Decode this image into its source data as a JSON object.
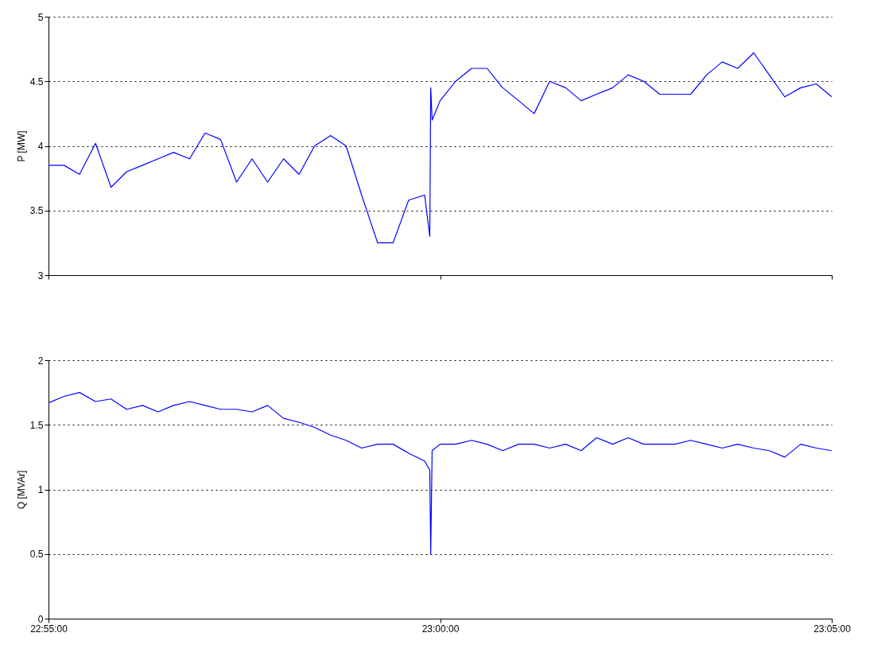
{
  "chart_data": [
    {
      "type": "line",
      "ylabel": "P [MW]",
      "xlim": [
        22.9167,
        23.0833
      ],
      "xticks": [
        {
          "value": 22.9167,
          "label": null
        },
        {
          "value": 23.0,
          "label": null
        },
        {
          "value": 23.0833,
          "label": null
        }
      ],
      "ylim": [
        3,
        5
      ],
      "yticks": [
        3,
        3.5,
        4,
        4.5,
        5
      ],
      "grid": "y",
      "tick_labels": "y",
      "x": [
        22.9167,
        22.92,
        22.9233,
        22.9267,
        22.93,
        22.9333,
        22.9367,
        22.94,
        22.9433,
        22.9467,
        22.95,
        22.9533,
        22.9567,
        22.96,
        22.9633,
        22.9667,
        22.97,
        22.9733,
        22.9767,
        22.98,
        22.9833,
        22.9867,
        22.99,
        22.9933,
        22.9967,
        22.9978,
        22.998,
        22.9983,
        23.0,
        23.0033,
        23.0067,
        23.01,
        23.0133,
        23.0167,
        23.02,
        23.0233,
        23.0267,
        23.03,
        23.0333,
        23.0367,
        23.04,
        23.0433,
        23.0467,
        23.05,
        23.0533,
        23.0567,
        23.06,
        23.0633,
        23.0667,
        23.07,
        23.0733,
        23.0767,
        23.08,
        23.0833
      ],
      "series": [
        {
          "color": "#0000ff",
          "values": [
            3.85,
            3.85,
            3.78,
            4.02,
            3.68,
            3.8,
            3.85,
            3.9,
            3.95,
            3.9,
            4.1,
            4.05,
            3.72,
            3.9,
            3.72,
            3.9,
            3.78,
            4.0,
            4.08,
            4.0,
            3.62,
            3.25,
            3.25,
            3.58,
            3.62,
            3.3,
            4.45,
            4.2,
            4.35,
            4.5,
            4.6,
            4.6,
            4.45,
            4.35,
            4.25,
            4.5,
            4.45,
            4.35,
            4.4,
            4.45,
            4.55,
            4.5,
            4.4,
            4.4,
            4.4,
            4.55,
            4.65,
            4.6,
            4.72,
            4.55,
            4.38,
            4.45,
            4.48,
            4.38
          ]
        }
      ]
    },
    {
      "type": "line",
      "ylabel": "Q [MVAr]",
      "xlim": [
        22.9167,
        23.0833
      ],
      "xticks": [
        {
          "value": 22.9167,
          "label": "22:55:00"
        },
        {
          "value": 23.0,
          "label": "23:00:00"
        },
        {
          "value": 23.0833,
          "label": "23:05:00"
        }
      ],
      "ylim": [
        0,
        2
      ],
      "yticks": [
        0,
        0.5,
        1,
        1.5,
        2
      ],
      "grid": "y",
      "x": [
        22.9167,
        22.92,
        22.9233,
        22.9267,
        22.93,
        22.9333,
        22.9367,
        22.94,
        22.9433,
        22.9467,
        22.95,
        22.9533,
        22.9567,
        22.96,
        22.9633,
        22.9667,
        22.97,
        22.9733,
        22.9767,
        22.98,
        22.9833,
        22.9867,
        22.99,
        22.9933,
        22.9967,
        22.9978,
        22.998,
        22.9983,
        23.0,
        23.0033,
        23.0067,
        23.01,
        23.0133,
        23.0167,
        23.02,
        23.0233,
        23.0267,
        23.03,
        23.0333,
        23.0367,
        23.04,
        23.0433,
        23.0467,
        23.05,
        23.0533,
        23.0567,
        23.06,
        23.0633,
        23.0667,
        23.07,
        23.0733,
        23.0767,
        23.08,
        23.0833
      ],
      "series": [
        {
          "color": "#0000ff",
          "values": [
            1.67,
            1.72,
            1.75,
            1.68,
            1.7,
            1.62,
            1.65,
            1.6,
            1.65,
            1.68,
            1.65,
            1.62,
            1.62,
            1.6,
            1.65,
            1.55,
            1.52,
            1.48,
            1.42,
            1.38,
            1.32,
            1.35,
            1.35,
            1.28,
            1.22,
            1.15,
            0.5,
            1.3,
            1.35,
            1.35,
            1.38,
            1.35,
            1.3,
            1.35,
            1.35,
            1.32,
            1.35,
            1.3,
            1.4,
            1.35,
            1.4,
            1.35,
            1.35,
            1.35,
            1.38,
            1.35,
            1.32,
            1.35,
            1.32,
            1.3,
            1.25,
            1.35,
            1.32,
            1.3
          ]
        }
      ]
    }
  ]
}
